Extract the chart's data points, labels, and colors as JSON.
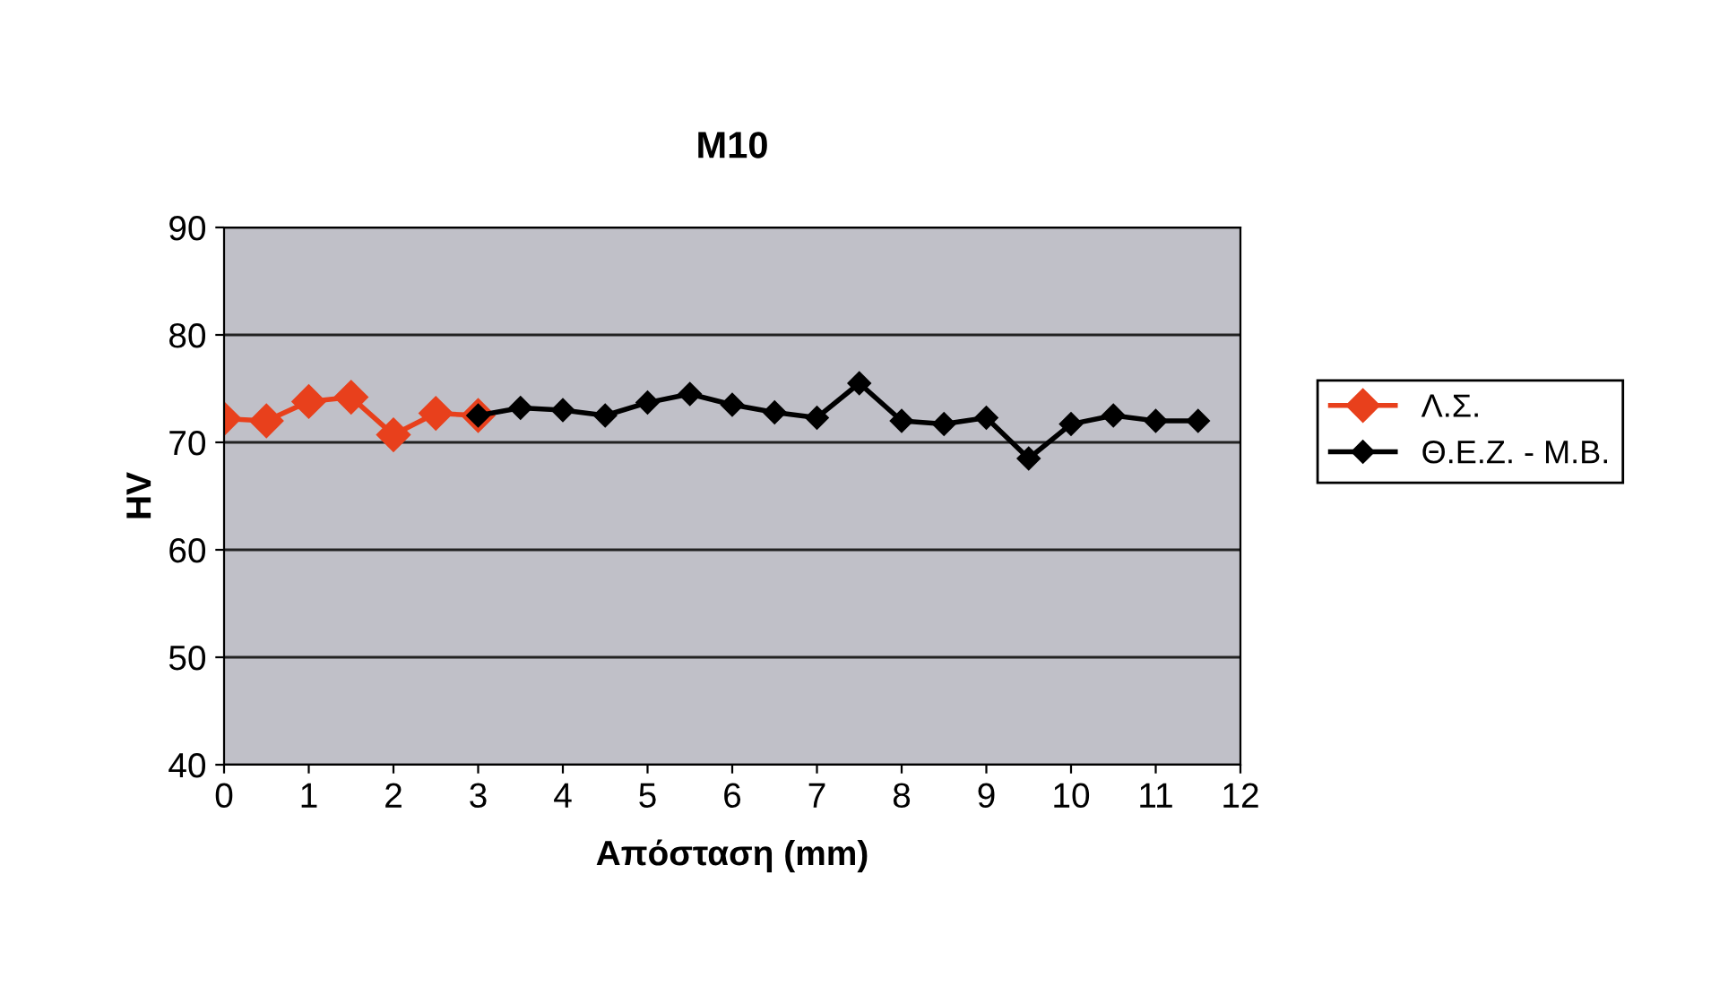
{
  "chart_data": {
    "type": "line",
    "title": "M10",
    "xlabel": "Απόσταση (mm)",
    "ylabel": "HV",
    "xlim": [
      0,
      12
    ],
    "xticks": [
      0,
      1,
      2,
      3,
      4,
      5,
      6,
      7,
      8,
      9,
      10,
      11,
      12
    ],
    "ylim": [
      40,
      90
    ],
    "yticks": [
      40,
      50,
      60,
      70,
      80,
      90
    ],
    "grid": "y",
    "legend": "right",
    "marker": "diamond",
    "line_style": "solid",
    "series": [
      {
        "name": "Λ.Σ.",
        "color": "#e8401c",
        "x": [
          0,
          0.5,
          1,
          1.5,
          2,
          2.5,
          3
        ],
        "values": [
          72.2,
          72,
          73.8,
          74.2,
          70.7,
          72.7,
          72.5
        ]
      },
      {
        "name": "Θ.Ε.Ζ. - Μ.Β.",
        "color": "#000000",
        "x": [
          3,
          3.5,
          4,
          4.5,
          5,
          5.5,
          6,
          6.5,
          7,
          7.5,
          8,
          8.5,
          9,
          9.5,
          10,
          10.5,
          11,
          11.5
        ],
        "values": [
          72.5,
          73.2,
          73,
          72.5,
          73.7,
          74.5,
          73.5,
          72.8,
          72.3,
          75.5,
          72,
          71.7,
          72.3,
          68.5,
          71.7,
          72.5,
          72,
          72
        ]
      }
    ]
  }
}
